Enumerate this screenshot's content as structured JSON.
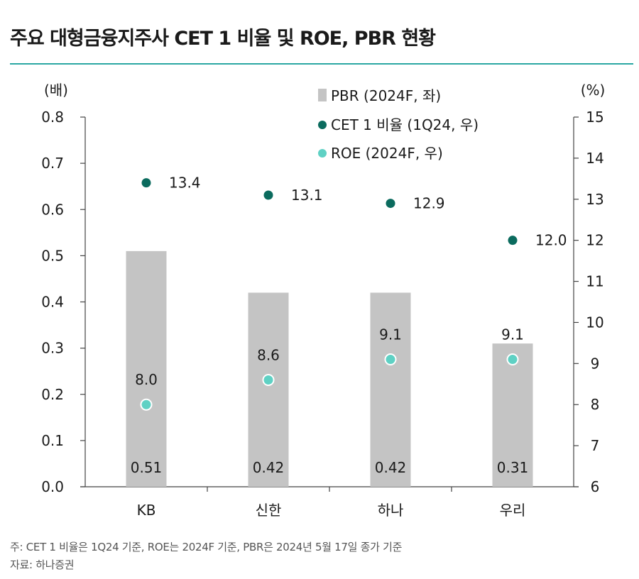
{
  "header": {
    "title": "주요 대형금융지주사 CET 1 비율 및 ROE, PBR 현황"
  },
  "chart_data": {
    "type": "bar",
    "categories": [
      "KB",
      "신한",
      "하나",
      "우리"
    ],
    "left_axis": {
      "unit_label": "(배)",
      "ylim": [
        0.0,
        0.8
      ],
      "ticks": [
        "0.0",
        "0.1",
        "0.2",
        "0.3",
        "0.4",
        "0.5",
        "0.6",
        "0.7",
        "0.8"
      ]
    },
    "right_axis": {
      "unit_label": "(%)",
      "ylim": [
        6,
        15
      ],
      "ticks": [
        "6",
        "7",
        "8",
        "9",
        "10",
        "11",
        "12",
        "13",
        "14",
        "15"
      ]
    },
    "series": [
      {
        "name": "PBR (2024F, 좌)",
        "kind": "bar",
        "axis": "left",
        "color": "#c4c4c4",
        "values": [
          0.51,
          0.42,
          0.42,
          0.31
        ],
        "labels": [
          "0.51",
          "0.42",
          "0.42",
          "0.31"
        ]
      },
      {
        "name": "CET 1 비율 (1Q24, 우)",
        "kind": "dot",
        "axis": "right",
        "color": "#0b6b5e",
        "values": [
          13.4,
          13.1,
          12.9,
          12.0
        ],
        "labels": [
          "13.4",
          "13.1",
          "12.9",
          "12.0"
        ]
      },
      {
        "name": "ROE (2024F, 우)",
        "kind": "dot",
        "axis": "right",
        "color": "#5fd1c4",
        "values": [
          8.0,
          8.6,
          9.1,
          9.1
        ],
        "labels": [
          "8.0",
          "8.6",
          "9.1",
          "9.1"
        ]
      }
    ],
    "legend_position": "top-center",
    "grid": false
  },
  "footer": {
    "note": "주: CET 1 비율은 1Q24 기준, ROE는 2024F 기준, PBR은 2024년 5월 17일 종가 기준",
    "source": "자료: 하나증권"
  }
}
